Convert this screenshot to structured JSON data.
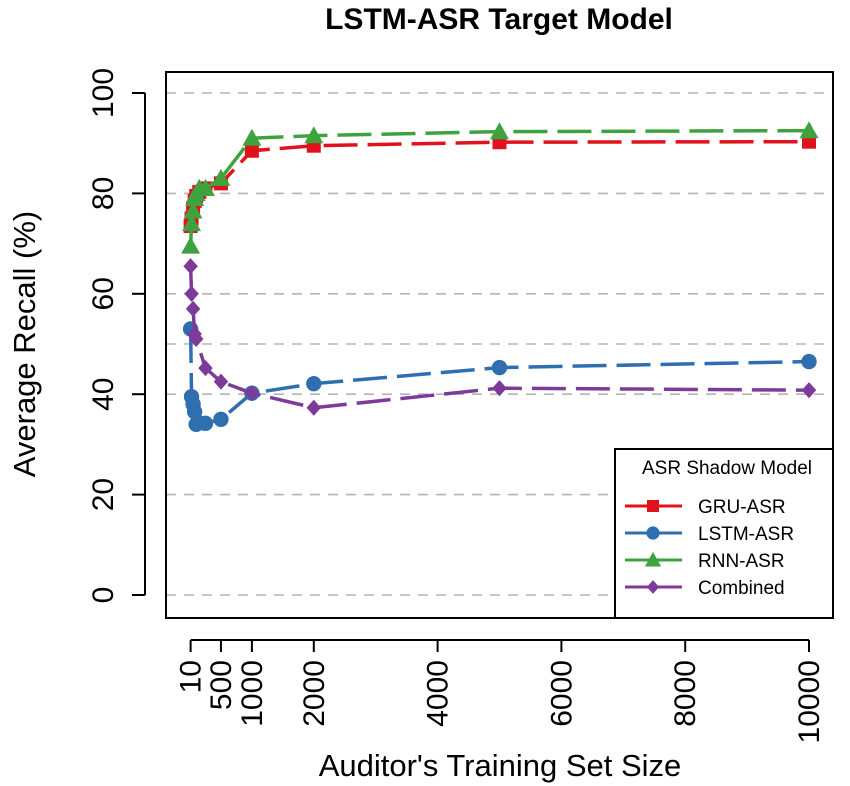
{
  "chart_data": {
    "type": "line",
    "title": "LSTM-ASR Target Model",
    "xlabel": "Auditor's Training Set Size",
    "ylabel": "Average Recall (%)",
    "xlim": [
      0,
      10000
    ],
    "ylim": [
      0,
      100
    ],
    "x_ticks": [
      10,
      500,
      1000,
      2000,
      4000,
      6000,
      8000,
      10000
    ],
    "x_tick_labels": [
      "10",
      "500",
      "1000",
      "2000",
      "4000",
      "6000",
      "8000",
      "10000"
    ],
    "y_ticks": [
      0,
      20,
      40,
      60,
      80,
      100
    ],
    "y_tick_labels": [
      "0",
      "20",
      "40",
      "60",
      "80",
      "100"
    ],
    "grid": "horizontal dashed",
    "legend_title": "ASR Shadow Model",
    "legend_position": "bottom-right",
    "series": [
      {
        "name": "GRU-ASR",
        "color": "#e0121c",
        "marker": "square",
        "x": [
          10,
          25,
          50,
          75,
          100,
          150,
          250,
          500,
          1000,
          2000,
          5000,
          10000
        ],
        "values": [
          73.5,
          75,
          77,
          78.5,
          79.5,
          80.3,
          81,
          82,
          88.5,
          89.5,
          90.2,
          90.3
        ]
      },
      {
        "name": "LSTM-ASR",
        "color": "#2f6fb0",
        "marker": "circle",
        "x": [
          10,
          25,
          50,
          75,
          100,
          150,
          250,
          500,
          1000,
          2000,
          5000,
          10000
        ],
        "values": [
          53,
          39.5,
          38,
          36.5,
          34,
          34.3,
          34.2,
          35,
          40.2,
          42.1,
          45.3,
          46.5
        ]
      },
      {
        "name": "RNN-ASR",
        "color": "#3ea33e",
        "marker": "triangle",
        "x": [
          10,
          25,
          50,
          75,
          100,
          150,
          250,
          500,
          1000,
          2000,
          5000,
          10000
        ],
        "values": [
          69.5,
          74,
          76.5,
          79,
          80,
          81,
          81,
          83,
          91,
          91.5,
          92.3,
          92.5
        ]
      },
      {
        "name": "Combined",
        "color": "#7e3a9a",
        "marker": "diamond",
        "x": [
          10,
          25,
          50,
          75,
          100,
          250,
          500,
          1000,
          2000,
          5000,
          10000
        ],
        "values": [
          65.5,
          60,
          57,
          52,
          51,
          45.2,
          42.5,
          40.2,
          37.3,
          41.2,
          40.8
        ]
      }
    ]
  }
}
